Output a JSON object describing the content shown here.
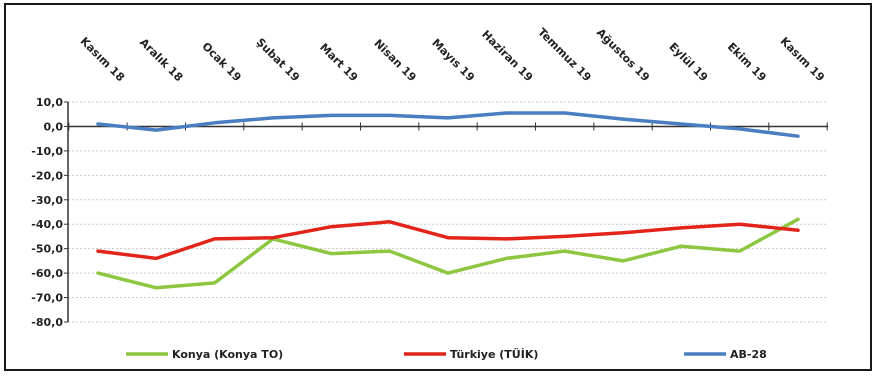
{
  "chart_data": {
    "type": "line",
    "title": "",
    "xlabel": "",
    "ylabel": "",
    "categories": [
      "Kasım 18",
      "Aralık 18",
      "Ocak 19",
      "Şubat 19",
      "Mart 19",
      "Nisan 19",
      "Mayıs 19",
      "Haziran 19",
      "Temmuz 19",
      "Ağustos 19",
      "Eylül 19",
      "Ekim 19",
      "Kasım 19"
    ],
    "y_ticks": [
      "10,0",
      "0,0",
      "-10,0",
      "-20,0",
      "-30,0",
      "-40,0",
      "-50,0",
      "-60,0",
      "-70,0",
      "-80,0"
    ],
    "y_tick_values": [
      10,
      0,
      -10,
      -20,
      -30,
      -40,
      -50,
      -60,
      -70,
      -80
    ],
    "ylim": [
      -80,
      10
    ],
    "grid": "horizontal-dotted",
    "legend_position": "bottom",
    "series": [
      {
        "name": "Konya (Konya TO)",
        "color": "#8dc63f",
        "values": [
          -60,
          -66,
          -64,
          -46,
          -52,
          -51,
          -60,
          -54,
          -51,
          -55,
          -49,
          -51,
          -38
        ]
      },
      {
        "name": "Türkiye (TÜİK)",
        "color": "#e3241b",
        "values": [
          -51,
          -54,
          -46,
          -45.5,
          -41,
          -39,
          -45.5,
          -46,
          -45,
          -43.5,
          -41.5,
          -40,
          -42.5
        ]
      },
      {
        "name": "AB-28",
        "color": "#4a7ec2",
        "values": [
          1,
          -1.5,
          1.5,
          3.5,
          4.5,
          4.5,
          3.5,
          5.5,
          5.5,
          3,
          1,
          -1,
          -4
        ]
      }
    ]
  }
}
